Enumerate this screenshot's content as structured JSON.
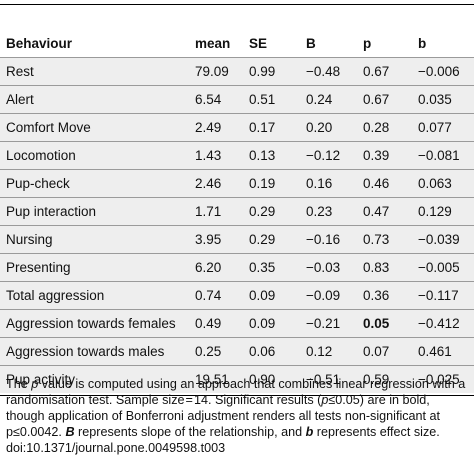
{
  "table": {
    "columns": [
      "Behaviour",
      "mean",
      "SE",
      "B",
      "p",
      "b"
    ],
    "rows": [
      {
        "behaviour": "Rest",
        "mean": "79.09",
        "se": "0.99",
        "B": "−0.48",
        "p": "0.67",
        "b": "−0.006"
      },
      {
        "behaviour": "Alert",
        "mean": "6.54",
        "se": "0.51",
        "B": "0.24",
        "p": "0.67",
        "b": "0.035"
      },
      {
        "behaviour": "Comfort Move",
        "mean": "2.49",
        "se": "0.17",
        "B": "0.20",
        "p": "0.28",
        "b": "0.077"
      },
      {
        "behaviour": "Locomotion",
        "mean": "1.43",
        "se": "0.13",
        "B": "−0.12",
        "p": "0.39",
        "b": "−0.081"
      },
      {
        "behaviour": "Pup-check",
        "mean": "2.46",
        "se": "0.19",
        "B": "0.16",
        "p": "0.46",
        "b": "0.063"
      },
      {
        "behaviour": "Pup interaction",
        "mean": "1.71",
        "se": "0.29",
        "B": "0.23",
        "p": "0.47",
        "b": "0.129"
      },
      {
        "behaviour": "Nursing",
        "mean": "3.95",
        "se": "0.29",
        "B": "−0.16",
        "p": "0.73",
        "b": "−0.039"
      },
      {
        "behaviour": "Presenting",
        "mean": "6.20",
        "se": "0.35",
        "B": "−0.03",
        "p": "0.83",
        "b": "−0.005"
      },
      {
        "behaviour": "Total aggression",
        "mean": "0.74",
        "se": "0.09",
        "B": "−0.09",
        "p": "0.36",
        "b": "−0.117"
      },
      {
        "behaviour": "Aggression towards females",
        "mean": "0.49",
        "se": "0.09",
        "B": "−0.21",
        "p": "0.05",
        "b": "−0.412",
        "p_bold": true
      },
      {
        "behaviour": "Aggression towards males",
        "mean": "0.25",
        "se": "0.06",
        "B": "0.12",
        "p": "0.07",
        "b": "0.461"
      },
      {
        "behaviour": "Pup activity",
        "mean": "19.51",
        "se": "0.90",
        "B": "−0.51",
        "p": "0.59",
        "b": "−0.025"
      }
    ]
  },
  "footnote": {
    "s1": "The ",
    "s2": "p",
    "s3": " value is computed using an approach that combines linear regression with a randomisation test. Sample size = 14. Significant results (",
    "s4": "p",
    "s5": "≤0.05) are in bold, though application of Bonferroni adjustment renders all tests non-significant at p≤0.0042. ",
    "s6": "B",
    "s7": " represents slope of the relationship, and ",
    "s8": "b",
    "s9": " represents effect size."
  },
  "doi": "doi:10.1371/journal.pone.0049598.t003"
}
